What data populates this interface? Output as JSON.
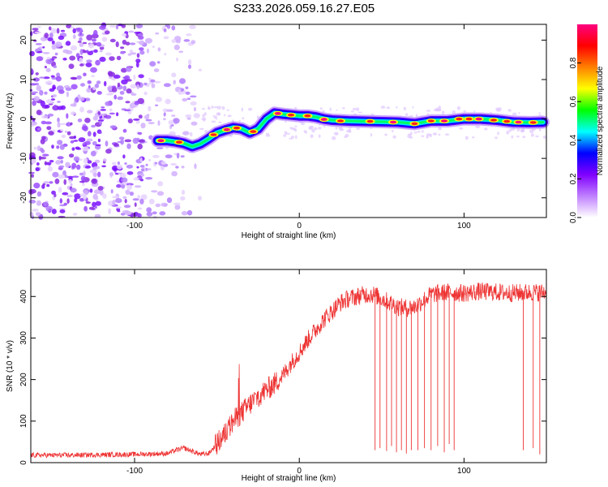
{
  "title": "S233.2026.059.16.27.E05",
  "chart_data": [
    {
      "type": "heatmap",
      "xlabel": "Height of straight line (km)",
      "ylabel": "Frequency (Hz)",
      "xlim": [
        -163,
        150
      ],
      "ylim": [
        -25,
        24
      ],
      "x_ticks": [
        -100,
        0,
        100
      ],
      "y_ticks": [
        20,
        10,
        0,
        -10,
        -20
      ],
      "colorbar": {
        "label": "Normalized spectral amplitude",
        "range": [
          0,
          1
        ],
        "ticks": [
          0.0,
          0.2,
          0.4,
          0.6,
          0.8
        ],
        "colors": [
          "#ffffff",
          "#c080ff",
          "#8000ff",
          "#0000ff",
          "#00ffff",
          "#00ff00",
          "#ffff00",
          "#ff8000",
          "#ff0000",
          "#ff0080"
        ]
      },
      "ridge": {
        "x": [
          -86,
          -80,
          -75,
          -70,
          -65,
          -60,
          -55,
          -50,
          -45,
          -40,
          -35,
          -30,
          -25,
          -20,
          -15,
          -10,
          -5,
          0,
          5,
          10,
          15,
          20,
          30,
          40,
          50,
          60,
          70,
          80,
          90,
          100,
          110,
          120,
          130,
          140,
          148
        ],
        "y": [
          -5.5,
          -5.5,
          -5.8,
          -6.2,
          -7.0,
          -6.3,
          -5.0,
          -3.5,
          -2.8,
          -2.2,
          -2.5,
          -3.5,
          -2.5,
          0.0,
          1.5,
          1.2,
          1.0,
          0.8,
          0.8,
          0.5,
          0.0,
          -0.3,
          -0.5,
          -0.6,
          -0.7,
          -0.8,
          -1.2,
          -0.5,
          -0.5,
          0.0,
          0.0,
          -0.3,
          -0.8,
          -0.9,
          -0.8
        ]
      }
    },
    {
      "type": "line",
      "xlabel": "Height of straight line (km)",
      "ylabel": "SNR (10 * v/v)",
      "xlim": [
        -163,
        150
      ],
      "ylim": [
        0,
        465
      ],
      "x_ticks": [
        -100,
        0,
        100
      ],
      "y_ticks": [
        0,
        100,
        200,
        300,
        400
      ],
      "color": "#ee3333",
      "series": [
        {
          "x": [
            -163,
            -140,
            -120,
            -100,
            -90,
            -80,
            -75,
            -70,
            -60,
            -55,
            -50,
            -45,
            -40,
            -35,
            -30,
            -25,
            -20,
            -15,
            -10,
            -5,
            0,
            5,
            10,
            15,
            20,
            25,
            30,
            35,
            40,
            45,
            50,
            55,
            60,
            65,
            70,
            75,
            80,
            90,
            100,
            110,
            120,
            130,
            140,
            150
          ],
          "values": [
            18,
            18,
            19,
            20,
            21,
            22,
            30,
            35,
            20,
            22,
            45,
            70,
            100,
            120,
            140,
            160,
            175,
            190,
            210,
            240,
            265,
            295,
            320,
            345,
            365,
            385,
            395,
            400,
            405,
            405,
            395,
            385,
            375,
            372,
            375,
            390,
            405,
            410,
            408,
            412,
            410,
            408,
            410,
            410
          ]
        }
      ],
      "dropouts": [
        {
          "x": 46,
          "min": 30
        },
        {
          "x": 49,
          "min": 35
        },
        {
          "x": 53,
          "min": 28
        },
        {
          "x": 56,
          "min": 40
        },
        {
          "x": 59,
          "min": 25
        },
        {
          "x": 62,
          "min": 30
        },
        {
          "x": 65,
          "min": 22
        },
        {
          "x": 68,
          "min": 30
        },
        {
          "x": 72,
          "min": 30
        },
        {
          "x": 76,
          "min": 35
        },
        {
          "x": 80,
          "min": 30
        },
        {
          "x": 84,
          "min": 40
        },
        {
          "x": 88,
          "min": 25
        },
        {
          "x": 91,
          "min": 45
        },
        {
          "x": 94,
          "min": 30
        },
        {
          "x": 136,
          "min": 30
        },
        {
          "x": 142,
          "min": 35
        },
        {
          "x": 146,
          "min": 20
        }
      ]
    }
  ]
}
